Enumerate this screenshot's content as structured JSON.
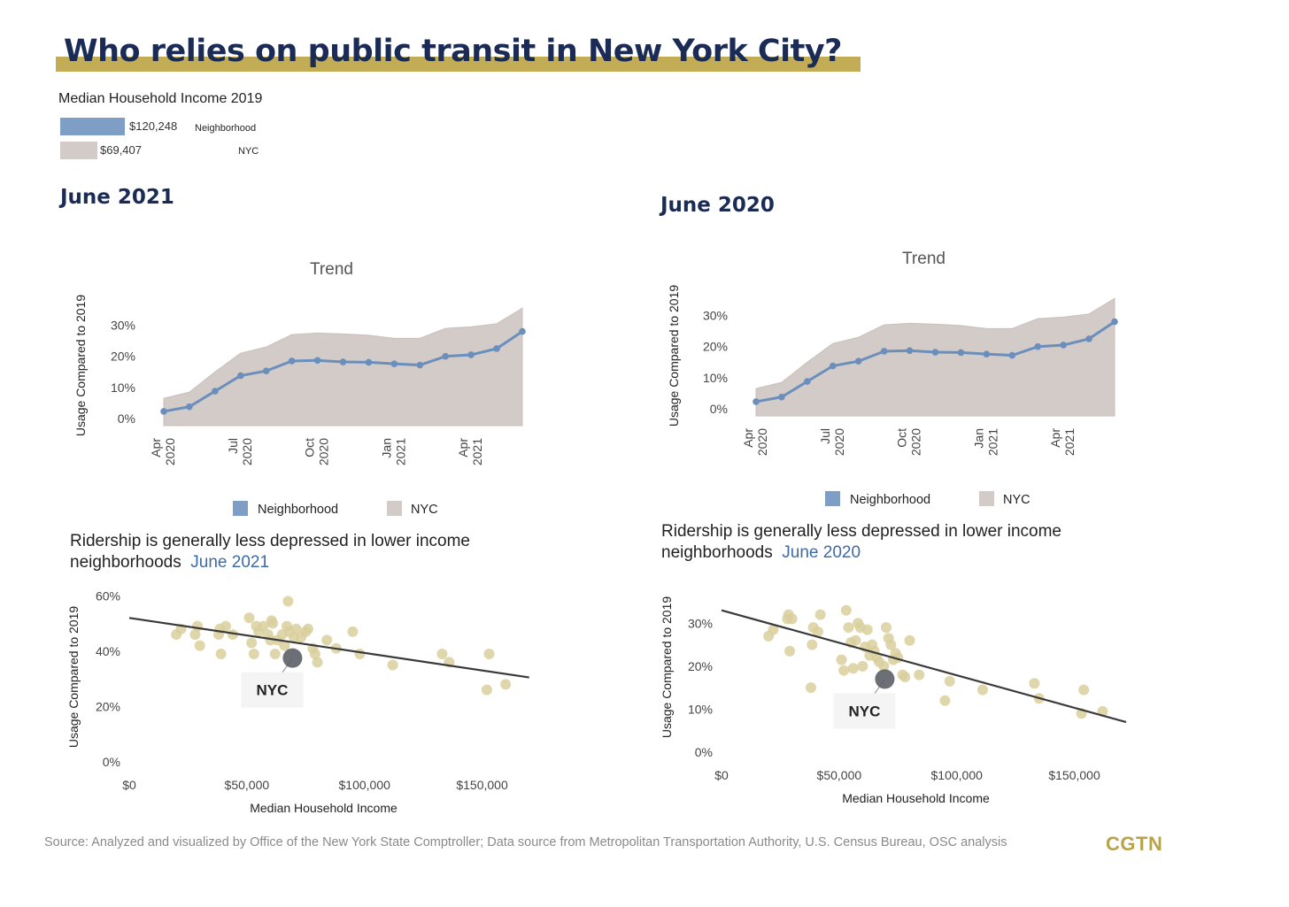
{
  "header": {
    "title": "Who relies on public transit in New York City?"
  },
  "income_panel": {
    "title": "Median Household Income 2019",
    "rows": [
      {
        "value": "$120,248",
        "label": "Neighborhood",
        "color": "#7f9ec5",
        "amount": 120248
      },
      {
        "value": "$69,407",
        "label": "NYC",
        "color": "#d3cbc7",
        "amount": 69407
      }
    ]
  },
  "panels": [
    {
      "heading": "June 2021"
    },
    {
      "heading": "June 2020"
    }
  ],
  "scatter_headers": [
    {
      "line1": "Ridership is generally less depressed in lower income",
      "line2": "neighborhoods",
      "accent": "June 2021"
    },
    {
      "line1": "Ridership is generally less depressed in lower income",
      "line2": "neighborhoods",
      "accent": "June 2020"
    }
  ],
  "footer": {
    "source": "Source: Analyzed and visualized by Office of the New York State Comptroller; Data source from Metropolitan Transportation Authority, U.S. Census Bureau, OSC analysis",
    "brand": "CGTN"
  },
  "colors": {
    "neighborhood": "#6b8fbd",
    "nyc_area": "#d3cbc7",
    "scatter_point": "#d9cf9c",
    "nyc_point": "#5c5f66",
    "trend_line": "#3a3a3a",
    "title_bar": "#c2ad56",
    "heading": "#1a2c55"
  },
  "chart_data": [
    {
      "type": "area",
      "title": "Trend",
      "ylabel": "Usage Compared to 2019",
      "ylim": [
        0,
        35
      ],
      "yticks": [
        0,
        10,
        20,
        30
      ],
      "ytick_labels": [
        "0%",
        "10%",
        "20%",
        "30%"
      ],
      "x": [
        "Apr 2020",
        "May 2020",
        "Jun 2020",
        "Jul 2020",
        "Aug 2020",
        "Sep 2020",
        "Oct 2020",
        "Nov 2020",
        "Dec 2020",
        "Jan 2021",
        "Feb 2021",
        "Mar 2021",
        "Apr 2021",
        "May 2021",
        "Jun 2021"
      ],
      "xtick_labels": [
        {
          "line1": "Apr",
          "line2": "2020",
          "index": 0
        },
        {
          "line1": "Jul",
          "line2": "2020",
          "index": 3
        },
        {
          "line1": "Oct",
          "line2": "2020",
          "index": 6
        },
        {
          "line1": "Jan",
          "line2": "2021",
          "index": 9
        },
        {
          "line1": "Apr",
          "line2": "2021",
          "index": 12
        }
      ],
      "series": [
        {
          "name": "NYC",
          "kind": "area",
          "values": [
            6.5,
            8.5,
            15,
            21,
            23,
            27,
            27.5,
            27.2,
            26.8,
            25.8,
            25.8,
            29,
            29.5,
            30.5,
            35.5
          ]
        },
        {
          "name": "Neighborhood",
          "kind": "line",
          "values": [
            2.3,
            3.8,
            8.8,
            13.8,
            15.3,
            18.5,
            18.7,
            18.2,
            18.1,
            17.6,
            17.2,
            20,
            20.5,
            22.5,
            28
          ]
        }
      ],
      "legend": [
        "Neighborhood",
        "NYC"
      ],
      "legend_position": "bottom"
    },
    {
      "type": "scatter",
      "xlabel": "Median Household Income",
      "ylabel": "Usage Compared to 2019",
      "xlim": [
        0,
        175000
      ],
      "ylim": [
        0,
        62
      ],
      "xticks": [
        0,
        50000,
        100000,
        150000
      ],
      "xtick_labels": [
        "$0",
        "$50,000",
        "$100,000",
        "$150,000"
      ],
      "yticks": [
        0,
        20,
        40,
        60
      ],
      "ytick_labels": [
        "0%",
        "20%",
        "40%",
        "60%"
      ],
      "points": [
        [
          20000,
          46
        ],
        [
          22000,
          48
        ],
        [
          28000,
          46
        ],
        [
          29000,
          49
        ],
        [
          30000,
          42
        ],
        [
          38000,
          46
        ],
        [
          38500,
          48
        ],
        [
          39000,
          39
        ],
        [
          41000,
          49
        ],
        [
          44000,
          46
        ],
        [
          51000,
          52
        ],
        [
          52000,
          43
        ],
        [
          53000,
          39
        ],
        [
          54000,
          49
        ],
        [
          55000,
          47
        ],
        [
          57000,
          49
        ],
        [
          59000,
          46
        ],
        [
          60000,
          44
        ],
        [
          60500,
          51
        ],
        [
          61000,
          50
        ],
        [
          62000,
          39
        ],
        [
          63000,
          44
        ],
        [
          65000,
          46
        ],
        [
          66000,
          42
        ],
        [
          67000,
          49
        ],
        [
          67500,
          58
        ],
        [
          68000,
          47
        ],
        [
          70000,
          45
        ],
        [
          71000,
          48
        ],
        [
          73000,
          45
        ],
        [
          75000,
          47
        ],
        [
          76000,
          48
        ],
        [
          78000,
          41
        ],
        [
          79000,
          39
        ],
        [
          80000,
          36
        ],
        [
          84000,
          44
        ],
        [
          88000,
          41
        ],
        [
          95000,
          47
        ],
        [
          98000,
          39
        ],
        [
          112000,
          35
        ],
        [
          133000,
          39
        ],
        [
          136000,
          36
        ],
        [
          152000,
          26
        ],
        [
          153000,
          39
        ],
        [
          160000,
          28
        ]
      ],
      "nyc_point": [
        69407,
        37.5
      ],
      "nyc_label": "NYC",
      "trend_line": [
        [
          0,
          52
        ],
        [
          170000,
          30.5
        ]
      ]
    },
    {
      "type": "area",
      "title": "Trend",
      "ylabel": "Usage Compared to 2019",
      "ylim": [
        0,
        35
      ],
      "yticks": [
        0,
        10,
        20,
        30
      ],
      "ytick_labels": [
        "0%",
        "10%",
        "20%",
        "30%"
      ],
      "x": [
        "Apr 2020",
        "May 2020",
        "Jun 2020",
        "Jul 2020",
        "Aug 2020",
        "Sep 2020",
        "Oct 2020",
        "Nov 2020",
        "Dec 2020",
        "Jan 2021",
        "Feb 2021",
        "Mar 2021",
        "Apr 2021",
        "May 2021",
        "Jun 2021"
      ],
      "xtick_labels": [
        {
          "line1": "Apr",
          "line2": "2020",
          "index": 0
        },
        {
          "line1": "Jul",
          "line2": "2020",
          "index": 3
        },
        {
          "line1": "Oct",
          "line2": "2020",
          "index": 6
        },
        {
          "line1": "Jan",
          "line2": "2021",
          "index": 9
        },
        {
          "line1": "Apr",
          "line2": "2021",
          "index": 12
        }
      ],
      "series": [
        {
          "name": "NYC",
          "kind": "area",
          "values": [
            6.5,
            8.5,
            15,
            21,
            23,
            27,
            27.5,
            27.2,
            26.8,
            25.8,
            25.8,
            29,
            29.5,
            30.5,
            35.5
          ]
        },
        {
          "name": "Neighborhood",
          "kind": "line",
          "values": [
            2.3,
            3.8,
            8.8,
            13.8,
            15.3,
            18.5,
            18.7,
            18.2,
            18.1,
            17.6,
            17.2,
            20,
            20.5,
            22.5,
            28
          ]
        }
      ],
      "legend": [
        "Neighborhood",
        "NYC"
      ],
      "legend_position": "bottom"
    },
    {
      "type": "scatter",
      "xlabel": "Median Household Income",
      "ylabel": "Usage Compared to 2019",
      "xlim": [
        0,
        175000
      ],
      "ylim": [
        0,
        35
      ],
      "xticks": [
        0,
        50000,
        100000,
        150000
      ],
      "xtick_labels": [
        "$0",
        "$50,000",
        "$100,000",
        "$150,000"
      ],
      "yticks": [
        0,
        10,
        20,
        30
      ],
      "ytick_labels": [
        "0%",
        "10%",
        "20%",
        "30%"
      ],
      "points": [
        [
          20000,
          27
        ],
        [
          22000,
          28.5
        ],
        [
          28000,
          31
        ],
        [
          28500,
          32
        ],
        [
          29000,
          23.5
        ],
        [
          30000,
          31
        ],
        [
          38000,
          15
        ],
        [
          38500,
          25
        ],
        [
          39000,
          29
        ],
        [
          41000,
          28
        ],
        [
          42000,
          32
        ],
        [
          51000,
          21.5
        ],
        [
          52000,
          19
        ],
        [
          53000,
          33
        ],
        [
          54000,
          29
        ],
        [
          55000,
          25.5
        ],
        [
          56000,
          19.5
        ],
        [
          57000,
          26
        ],
        [
          58000,
          30
        ],
        [
          59000,
          29
        ],
        [
          60000,
          20
        ],
        [
          61000,
          24.5
        ],
        [
          62000,
          28.5
        ],
        [
          63000,
          22.5
        ],
        [
          64000,
          25
        ],
        [
          65000,
          23.5
        ],
        [
          66000,
          22
        ],
        [
          67000,
          21
        ],
        [
          69000,
          20
        ],
        [
          70000,
          29
        ],
        [
          71000,
          26.5
        ],
        [
          72000,
          25
        ],
        [
          73000,
          21.5
        ],
        [
          74000,
          23
        ],
        [
          75000,
          22
        ],
        [
          77000,
          18
        ],
        [
          78000,
          17.5
        ],
        [
          80000,
          26
        ],
        [
          84000,
          18
        ],
        [
          95000,
          12
        ],
        [
          97000,
          16.5
        ],
        [
          111000,
          14.5
        ],
        [
          133000,
          16
        ],
        [
          135000,
          12.5
        ],
        [
          153000,
          9
        ],
        [
          154000,
          14.5
        ],
        [
          162000,
          9.5
        ]
      ],
      "nyc_point": [
        69407,
        17
      ],
      "nyc_label": "NYC",
      "trend_line": [
        [
          0,
          33
        ],
        [
          172000,
          7
        ]
      ]
    }
  ]
}
